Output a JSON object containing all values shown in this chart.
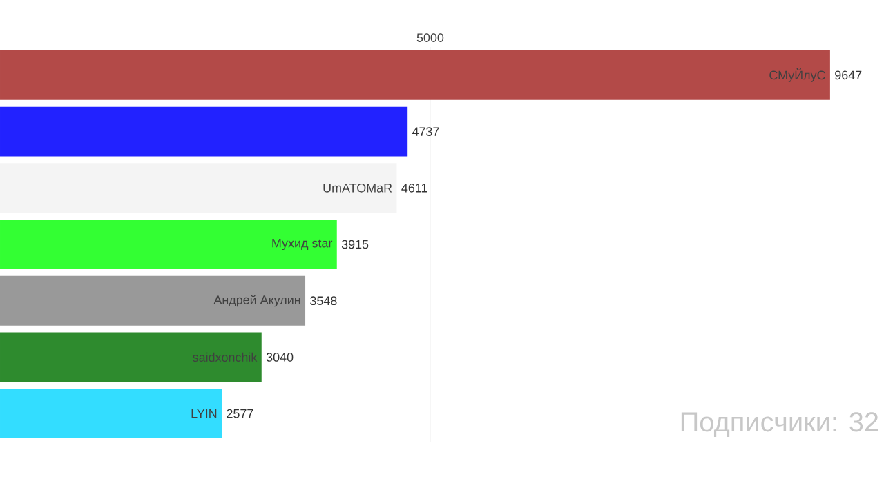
{
  "chart_data": {
    "type": "bar",
    "orientation": "horizontal",
    "categories": [
      "СМуЙлуС",
      null,
      "UmATOMaR",
      "Мухид star",
      "Андрей Акулин",
      "saidxonchik",
      "LYIN"
    ],
    "values": [
      9647,
      4737,
      4611,
      3915,
      3548,
      3040,
      2577
    ],
    "colors": [
      "#b34a48",
      "#2222ff",
      "#f4f4f4",
      "#33ff33",
      "#999999",
      "#2e8b2e",
      "#33ddff"
    ],
    "ref_lines": [
      {
        "axis": "x",
        "value": 5000,
        "label": "5000",
        "color": "#e6e6e6"
      }
    ],
    "data_labels": true,
    "annotations": [
      "Подписчики: 32"
    ]
  }
}
